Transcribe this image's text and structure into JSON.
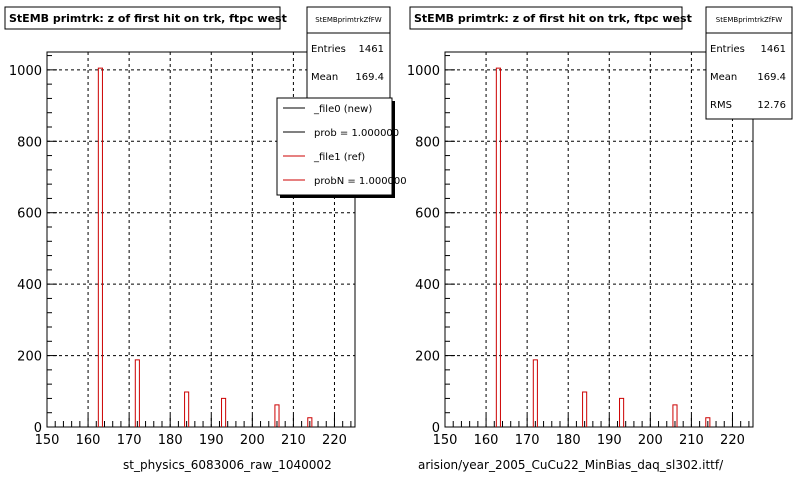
{
  "colors": {
    "background": "#ffffff",
    "axis": "#000000",
    "grid": "#000000",
    "histogram": "#cc0000",
    "legend_new": "#000000",
    "legend_ref": "#cc0000"
  },
  "footer_text": "",
  "chart_data": [
    {
      "type": "bar",
      "title": "StEMB primtrk: z of first hit on trk, ftpc west",
      "xlabel": "st_physics_6083006_raw_1040002",
      "ylabel": "",
      "xlim": [
        150,
        225
      ],
      "ylim": [
        0,
        1050
      ],
      "xticks": [
        150,
        160,
        170,
        180,
        190,
        200,
        210,
        220
      ],
      "yticks": [
        0,
        200,
        400,
        600,
        800,
        1000
      ],
      "grid": true,
      "bin_width": 1,
      "bars": [
        {
          "x": 163,
          "value": 1005
        },
        {
          "x": 172,
          "value": 188
        },
        {
          "x": 184,
          "value": 98
        },
        {
          "x": 193,
          "value": 80
        },
        {
          "x": 206,
          "value": 62
        },
        {
          "x": 214,
          "value": 26
        }
      ],
      "stats": {
        "name": "StEMBprimtrkZfFW",
        "rows": [
          {
            "label": "Entries",
            "value": "1461"
          },
          {
            "label": "Mean",
            "value": "169.4"
          }
        ]
      },
      "legend": {
        "placement": "top-right",
        "entries": [
          {
            "label": "_file0 (new)",
            "color": "#000000"
          },
          {
            "label": "prob = 1.000000",
            "color": "#000000"
          },
          {
            "label": "_file1 (ref)",
            "color": "#cc0000"
          },
          {
            "label": "probN = 1.000000",
            "color": "#cc0000"
          }
        ]
      }
    },
    {
      "type": "bar",
      "title": "StEMB primtrk: z of first hit on trk, ftpc west",
      "xlabel": "arision/year_2005_CuCu22_MinBias_daq_sl302.ittf/",
      "ylabel": "",
      "xlim": [
        150,
        225
      ],
      "ylim": [
        0,
        1050
      ],
      "xticks": [
        150,
        160,
        170,
        180,
        190,
        200,
        210,
        220
      ],
      "yticks": [
        0,
        200,
        400,
        600,
        800,
        1000
      ],
      "grid": true,
      "bin_width": 1,
      "bars": [
        {
          "x": 163,
          "value": 1005
        },
        {
          "x": 172,
          "value": 188
        },
        {
          "x": 184,
          "value": 98
        },
        {
          "x": 193,
          "value": 80
        },
        {
          "x": 206,
          "value": 62
        },
        {
          "x": 214,
          "value": 26
        }
      ],
      "stats": {
        "name": "StEMBprimtrkZfFW",
        "rows": [
          {
            "label": "Entries",
            "value": "1461"
          },
          {
            "label": "Mean",
            "value": "169.4"
          },
          {
            "label": "RMS",
            "value": "12.76"
          }
        ]
      }
    }
  ]
}
